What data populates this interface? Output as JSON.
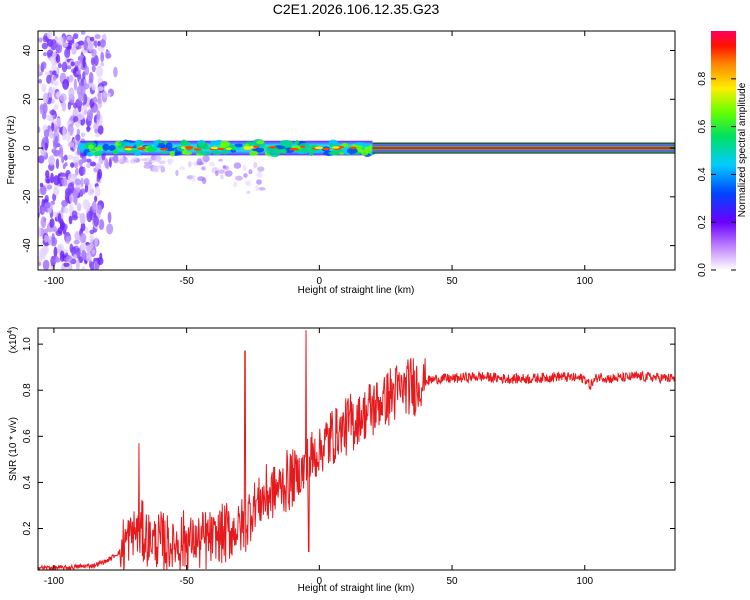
{
  "title": "C2E1.2026.106.12.35.G23",
  "colors": {
    "background": "#ffffff",
    "axis": "#000000",
    "snr_line": "#e8191c"
  },
  "chart_data": [
    {
      "type": "heatmap",
      "name": "spectrogram",
      "xlabel": "Height of straight line (km)",
      "ylabel": "Frequency (Hz)",
      "xlim": [
        -106,
        134
      ],
      "ylim": [
        -50,
        48
      ],
      "xticks": [
        -100,
        -50,
        0,
        50,
        100
      ],
      "yticks": [
        -40,
        -20,
        0,
        20,
        40
      ],
      "colorbar": {
        "label": "Normalized spectral amplitude",
        "range": [
          0,
          1
        ],
        "ticks": [
          "0.0",
          "0.2",
          "0.4",
          "0.6",
          "0.8"
        ],
        "tick_values": [
          0.0,
          0.2,
          0.4,
          0.6,
          0.8
        ]
      },
      "features": [
        {
          "desc": "scattered noise blobs",
          "x_range": [
            -106,
            -82
          ],
          "f_range": [
            -50,
            48
          ],
          "amplitude": 0.15
        },
        {
          "desc": "carrier band",
          "x_range": [
            -90,
            20
          ],
          "f_center": 0,
          "f_halfwidth": 3,
          "amplitude": 0.5
        },
        {
          "desc": "steady carrier line",
          "x_range": [
            20,
            134
          ],
          "f_center": 0,
          "f_halfwidth": 1,
          "amplitude": 0.9
        }
      ]
    },
    {
      "type": "line",
      "name": "snr",
      "xlabel": "Height of straight line (km)",
      "ylabel": "SNR (10 * v/v)",
      "ylabel_multiplier": "(x10",
      "ylabel_multiplier_exp": "4",
      "ylabel_multiplier_close": ")",
      "xlim": [
        -106,
        134
      ],
      "ylim": [
        0.02,
        1.07
      ],
      "xticks": [
        -100,
        -50,
        0,
        50,
        100
      ],
      "yticks": [
        0.2,
        0.4,
        0.6,
        0.8,
        1
      ],
      "ytick_labels": [
        "0.2",
        "0.4",
        "0.6",
        "0.8",
        "1.0"
      ],
      "series": [
        {
          "name": "SNR",
          "color": "#e8191c",
          "x": [
            -106,
            -95,
            -85,
            -80,
            -75,
            -72,
            -68,
            -65,
            -60,
            -55,
            -50,
            -45,
            -40,
            -35,
            -30,
            -27,
            -25,
            -20,
            -15,
            -10,
            -6,
            -5,
            -3,
            0,
            5,
            10,
            15,
            20,
            25,
            30,
            35,
            40,
            45,
            50,
            60,
            70,
            80,
            90,
            100,
            102,
            105,
            110,
            120,
            134
          ],
          "y": [
            0.03,
            0.03,
            0.04,
            0.06,
            0.1,
            0.16,
            0.2,
            0.16,
            0.14,
            0.13,
            0.15,
            0.14,
            0.16,
            0.18,
            0.2,
            0.24,
            0.3,
            0.34,
            0.38,
            0.42,
            0.45,
            0.46,
            0.5,
            0.54,
            0.6,
            0.64,
            0.68,
            0.72,
            0.76,
            0.8,
            0.82,
            0.84,
            0.85,
            0.85,
            0.86,
            0.85,
            0.85,
            0.86,
            0.85,
            0.82,
            0.86,
            0.85,
            0.86,
            0.85
          ]
        }
      ],
      "annotations": [
        {
          "x": -68,
          "y": 0.57,
          "desc": "spike"
        },
        {
          "x": -28,
          "y": 0.97,
          "desc": "spike"
        },
        {
          "x": -5,
          "y": 1.06,
          "desc": "spike"
        },
        {
          "x": -4,
          "y": 0.1,
          "desc": "dip"
        }
      ]
    }
  ]
}
